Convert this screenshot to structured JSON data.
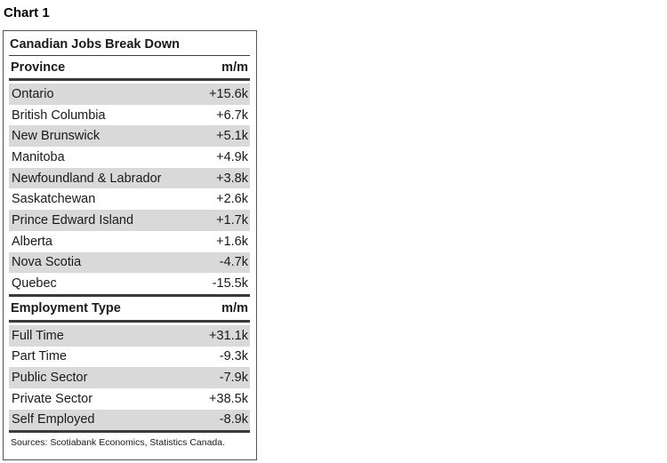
{
  "chart_label": "Chart 1",
  "title": "Canadian Jobs Break Down",
  "sections": [
    {
      "header": "Province",
      "value_header": "m/m",
      "rows": [
        {
          "name": "Ontario",
          "value": "+15.6k"
        },
        {
          "name": "British Columbia",
          "value": "+6.7k"
        },
        {
          "name": "New Brunswick",
          "value": "+5.1k"
        },
        {
          "name": "Manitoba",
          "value": "+4.9k"
        },
        {
          "name": "Newfoundland & Labrador",
          "value": "+3.8k"
        },
        {
          "name": "Saskatchewan",
          "value": "+2.6k"
        },
        {
          "name": "Prince Edward Island",
          "value": "+1.7k"
        },
        {
          "name": "Alberta",
          "value": "+1.6k"
        },
        {
          "name": "Nova Scotia",
          "value": "-4.7k"
        },
        {
          "name": "Quebec",
          "value": "-15.5k"
        }
      ]
    },
    {
      "header": "Employment Type",
      "value_header": "m/m",
      "rows": [
        {
          "name": "Full Time",
          "value": "+31.1k"
        },
        {
          "name": "Part Time",
          "value": "-9.3k"
        },
        {
          "name": "Public Sector",
          "value": "-7.9k"
        },
        {
          "name": "Private Sector",
          "value": "+38.5k"
        },
        {
          "name": "Self Employed",
          "value": "-8.9k"
        }
      ]
    }
  ],
  "source": "Sources: Scotiabank Economics, Statistics Canada.",
  "colors": {
    "shade": "#d9d9d9",
    "rule": "#3a3a3a"
  }
}
